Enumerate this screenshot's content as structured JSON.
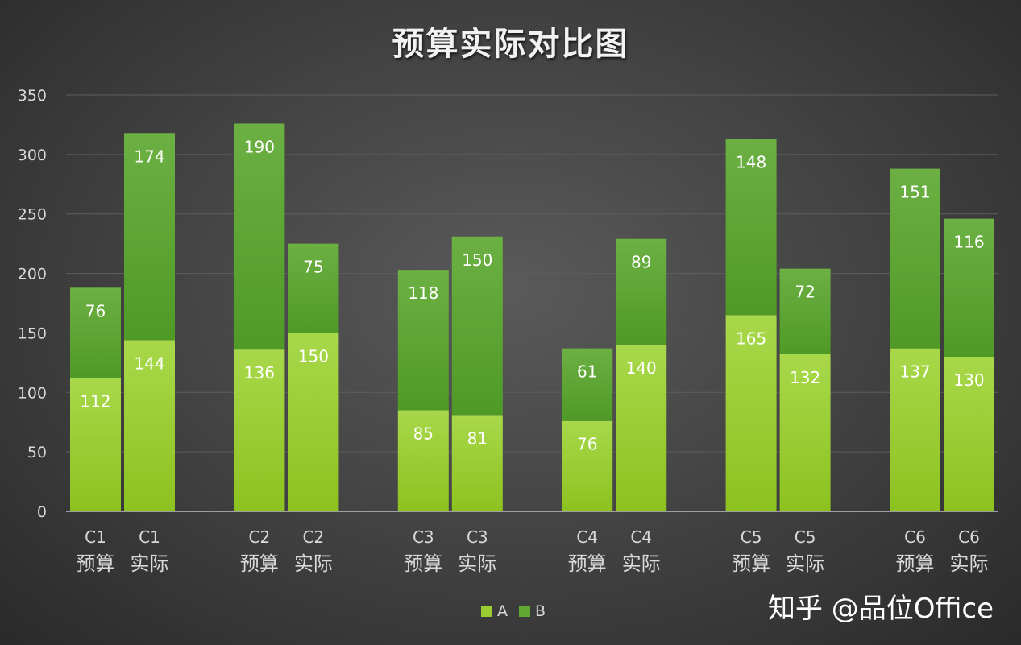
{
  "chart_data": {
    "type": "bar",
    "stacked": true,
    "title": "预算实际对比图",
    "categories": [
      "C1 预算",
      "C1 实际",
      "C2 预算",
      "C2 实际",
      "C3 预算",
      "C3 实际",
      "C4 预算",
      "C4 实际",
      "C5 预算",
      "C5 实际",
      "C6 预算",
      "C6 实际"
    ],
    "category_lines": [
      [
        "C1",
        "预算"
      ],
      [
        "C1",
        "实际"
      ],
      [
        "C2",
        "预算"
      ],
      [
        "C2",
        "实际"
      ],
      [
        "C3",
        "预算"
      ],
      [
        "C3",
        "实际"
      ],
      [
        "C4",
        "预算"
      ],
      [
        "C4",
        "实际"
      ],
      [
        "C5",
        "预算"
      ],
      [
        "C5",
        "实际"
      ],
      [
        "C6",
        "预算"
      ],
      [
        "C6",
        "实际"
      ]
    ],
    "series": [
      {
        "name": "A",
        "color": "#9acd32",
        "values": [
          112,
          144,
          136,
          150,
          85,
          81,
          76,
          140,
          165,
          132,
          137,
          130
        ]
      },
      {
        "name": "B",
        "color": "#5fa832",
        "values": [
          76,
          174,
          190,
          75,
          118,
          150,
          61,
          89,
          148,
          72,
          151,
          116
        ]
      }
    ],
    "yticks": [
      0,
      50,
      100,
      150,
      200,
      250,
      300,
      350
    ],
    "ylim": [
      0,
      350
    ],
    "grid": true,
    "legend": "bottom"
  },
  "watermark": "知乎 @品位Office"
}
